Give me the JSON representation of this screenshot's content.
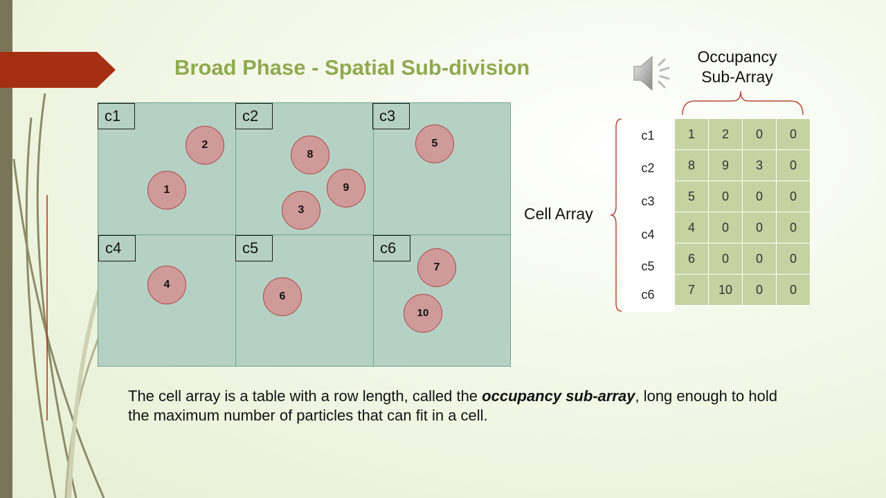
{
  "slide": {
    "title": "Broad Phase - Spatial Sub-division",
    "occupancy_label": [
      "Occupancy",
      "Sub-Array"
    ],
    "cell_array_label": "Cell Array",
    "caption": {
      "before": "The cell array is a table with a row length, called the ",
      "emphasis": "occupancy sub-array",
      "after": ", long enough to hold the maximum number of particles that can fit in a cell."
    }
  },
  "grid": {
    "cells": [
      {
        "label": "c1",
        "particles": [
          {
            "id": "2"
          },
          {
            "id": "1"
          }
        ]
      },
      {
        "label": "c2",
        "particles": [
          {
            "id": "8"
          },
          {
            "id": "9"
          },
          {
            "id": "3"
          }
        ]
      },
      {
        "label": "c3",
        "particles": [
          {
            "id": "5"
          }
        ]
      },
      {
        "label": "c4",
        "particles": [
          {
            "id": "4"
          }
        ]
      },
      {
        "label": "c5",
        "particles": [
          {
            "id": "6"
          }
        ]
      },
      {
        "label": "c6",
        "particles": [
          {
            "id": "7"
          },
          {
            "id": "10"
          }
        ]
      }
    ]
  },
  "table": {
    "row_labels": [
      "c1",
      "c2",
      "c3",
      "c4",
      "c5",
      "c6"
    ],
    "rows": [
      [
        "1",
        "2",
        "0",
        "0"
      ],
      [
        "8",
        "9",
        "3",
        "0"
      ],
      [
        "5",
        "0",
        "0",
        "0"
      ],
      [
        "4",
        "0",
        "0",
        "0"
      ],
      [
        "6",
        "0",
        "0",
        "0"
      ],
      [
        "7",
        "10",
        "0",
        "0"
      ]
    ]
  },
  "icons": {
    "speaker": "speaker-icon",
    "title_arrow": "arrow-banner-icon"
  },
  "colors": {
    "title": "#8faa4e",
    "grid_fill": "#b5d1c4",
    "particle_fill": "#cf9a9a",
    "particle_border": "#b04444",
    "table_cell": "#c3d3a1",
    "arrow_banner": "#a52f12"
  }
}
